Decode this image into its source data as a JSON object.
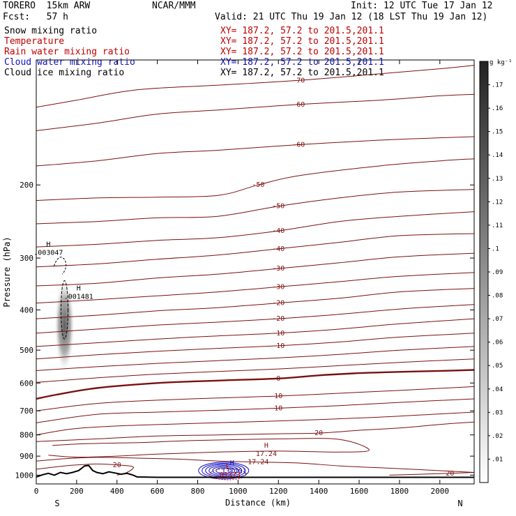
{
  "header": {
    "model": "TORERO  15km ARW",
    "center": "NCAR/MMM",
    "init": "Init: 12 UTC Tue 17 Jan 12",
    "fcst": "Fcst:   57 h",
    "valid": "Valid: 21 UTC Thu 19 Jan 12 (18 LST Thu 19 Jan 12)",
    "fields": [
      {
        "name": "Snow mixing ratio",
        "xy": "XY= 187.2, 57.2 to 201.5,201.1",
        "color": "#000000"
      },
      {
        "name": "Temperature",
        "xy": "XY= 187.2, 57.2 to 201.5,201.1",
        "color": "#c00000"
      },
      {
        "name": "Rain water mixing ratio",
        "xy": "XY= 187.2, 57.2 to 201.5,201.1",
        "color": "#c00000"
      },
      {
        "name": "Cloud water mixing ratio",
        "xy": "XY= 187.2, 57.2 to 201.5,201.1",
        "color": "#1010c0"
      },
      {
        "name": "Cloud ice mixing ratio",
        "xy": "XY= 187.2, 57.2 to 201.5,201.1",
        "color": "#000000"
      }
    ]
  },
  "chart_data": {
    "type": "contour-cross-section",
    "xlabel": "Distance (km)",
    "ylabel": "Pressure (hPa)",
    "xlim": [
      0,
      2170
    ],
    "ylim": [
      1050,
      100
    ],
    "yscale": "log",
    "x_ticks": [
      0,
      200,
      400,
      600,
      800,
      1000,
      1200,
      1400,
      1600,
      1800,
      2000
    ],
    "x_tick_labels": [
      "0",
      "200",
      "400",
      "600",
      "800",
      "1000",
      "1200",
      "1400",
      "1600",
      "1800",
      "2000"
    ],
    "y_ticks": [
      200,
      300,
      400,
      500,
      600,
      700,
      800,
      900,
      1000
    ],
    "y_tick_labels": [
      "200",
      "300",
      "400",
      "500",
      "600",
      "700",
      "800",
      "900",
      "1000"
    ],
    "x_end_labels": {
      "left": "S",
      "right": "N"
    },
    "temperature_contours": [
      {
        "label": "-70",
        "points": [
          [
            0,
            130
          ],
          [
            200,
            125
          ],
          [
            500,
            118
          ],
          [
            900,
            115
          ],
          [
            1300,
            112
          ],
          [
            1700,
            108
          ],
          [
            2000,
            105
          ],
          [
            2170,
            103
          ]
        ]
      },
      {
        "label": "-60",
        "points": [
          [
            0,
            148
          ],
          [
            300,
            142
          ],
          [
            600,
            135
          ],
          [
            900,
            132
          ],
          [
            1300,
            128
          ],
          [
            1700,
            125
          ],
          [
            2000,
            122
          ],
          [
            2170,
            121
          ]
        ]
      },
      {
        "label": "-60",
        "points": [
          [
            0,
            180
          ],
          [
            300,
            175
          ],
          [
            600,
            168
          ],
          [
            900,
            165
          ],
          [
            1300,
            160
          ],
          [
            1700,
            156
          ],
          [
            2000,
            154
          ],
          [
            2170,
            153
          ]
        ]
      },
      {
        "label": "-50",
        "points": [
          [
            0,
            218
          ],
          [
            300,
            215
          ],
          [
            600,
            214
          ],
          [
            900,
            212
          ],
          [
            1100,
            200
          ],
          [
            1300,
            190
          ],
          [
            1700,
            180
          ],
          [
            2000,
            175
          ],
          [
            2170,
            173
          ]
        ]
      },
      {
        "label": "-50",
        "points": [
          [
            0,
            248
          ],
          [
            300,
            245
          ],
          [
            600,
            240
          ],
          [
            900,
            238
          ],
          [
            1200,
            225
          ],
          [
            1500,
            215
          ],
          [
            1800,
            208
          ],
          [
            2170,
            205
          ]
        ]
      },
      {
        "label": "-40",
        "points": [
          [
            0,
            282
          ],
          [
            300,
            278
          ],
          [
            600,
            272
          ],
          [
            900,
            268
          ],
          [
            1200,
            258
          ],
          [
            1500,
            245
          ],
          [
            1800,
            238
          ],
          [
            2170,
            232
          ]
        ]
      },
      {
        "label": "-40",
        "points": [
          [
            0,
            315
          ],
          [
            300,
            310
          ],
          [
            600,
            302
          ],
          [
            900,
            295
          ],
          [
            1200,
            285
          ],
          [
            1500,
            275
          ],
          [
            1800,
            265
          ],
          [
            2170,
            262
          ]
        ]
      },
      {
        "label": "-30",
        "points": [
          [
            0,
            350
          ],
          [
            300,
            345
          ],
          [
            600,
            335
          ],
          [
            900,
            328
          ],
          [
            1200,
            318
          ],
          [
            1500,
            308
          ],
          [
            1800,
            298
          ],
          [
            2170,
            292
          ]
        ]
      },
      {
        "label": "-30",
        "points": [
          [
            0,
            385
          ],
          [
            300,
            378
          ],
          [
            600,
            370
          ],
          [
            900,
            362
          ],
          [
            1200,
            352
          ],
          [
            1500,
            342
          ],
          [
            1800,
            332
          ],
          [
            2170,
            325
          ]
        ]
      },
      {
        "label": "-20",
        "points": [
          [
            0,
            420
          ],
          [
            300,
            412
          ],
          [
            600,
            402
          ],
          [
            900,
            395
          ],
          [
            1200,
            385
          ],
          [
            1500,
            375
          ],
          [
            1800,
            362
          ],
          [
            2170,
            355
          ]
        ]
      },
      {
        "label": "-20",
        "points": [
          [
            0,
            455
          ],
          [
            300,
            445
          ],
          [
            600,
            435
          ],
          [
            900,
            428
          ],
          [
            1200,
            420
          ],
          [
            1500,
            410
          ],
          [
            1800,
            398
          ],
          [
            2170,
            388
          ]
        ]
      },
      {
        "label": "-10",
        "points": [
          [
            0,
            490
          ],
          [
            300,
            480
          ],
          [
            600,
            470
          ],
          [
            900,
            462
          ],
          [
            1200,
            455
          ],
          [
            1500,
            445
          ],
          [
            1800,
            432
          ],
          [
            2170,
            420
          ]
        ]
      },
      {
        "label": "-10",
        "points": [
          [
            0,
            525
          ],
          [
            300,
            513
          ],
          [
            600,
            503
          ],
          [
            900,
            495
          ],
          [
            1200,
            488
          ],
          [
            1500,
            478
          ],
          [
            1800,
            465
          ],
          [
            2170,
            455
          ]
        ]
      },
      {
        "label": "",
        "points": [
          [
            0,
            560
          ],
          [
            300,
            548
          ],
          [
            600,
            538
          ],
          [
            900,
            530
          ],
          [
            1200,
            522
          ],
          [
            1500,
            512
          ],
          [
            1800,
            500
          ],
          [
            2170,
            490
          ]
        ]
      },
      {
        "label": "0",
        "bold": true,
        "points": [
          [
            0,
            655
          ],
          [
            100,
            640
          ],
          [
            300,
            617
          ],
          [
            600,
            600
          ],
          [
            900,
            592
          ],
          [
            1200,
            585
          ],
          [
            1400,
            575
          ],
          [
            1600,
            568
          ],
          [
            1800,
            564
          ],
          [
            2000,
            561
          ],
          [
            2170,
            558
          ]
        ]
      },
      {
        "label": "",
        "points": [
          [
            0,
            598
          ],
          [
            300,
            583
          ],
          [
            600,
            571
          ],
          [
            900,
            563
          ],
          [
            1200,
            555
          ],
          [
            1500,
            545
          ],
          [
            1800,
            535
          ],
          [
            2170,
            525
          ]
        ]
      },
      {
        "label": "10",
        "points": [
          [
            0,
            700
          ],
          [
            300,
            672
          ],
          [
            600,
            660
          ],
          [
            900,
            652
          ],
          [
            1200,
            645
          ],
          [
            1500,
            635
          ],
          [
            1800,
            625
          ],
          [
            2170,
            612
          ]
        ]
      },
      {
        "label": "10",
        "points": [
          [
            0,
            748
          ],
          [
            300,
            714
          ],
          [
            600,
            705
          ],
          [
            900,
            698
          ],
          [
            1200,
            690
          ],
          [
            1500,
            680
          ],
          [
            1800,
            668
          ],
          [
            2170,
            655
          ]
        ]
      },
      {
        "label": "",
        "points": [
          [
            0,
            800
          ],
          [
            200,
            772
          ],
          [
            500,
            758
          ],
          [
            900,
            748
          ],
          [
            1300,
            738
          ],
          [
            1700,
            725
          ],
          [
            2000,
            712
          ],
          [
            2170,
            705
          ]
        ]
      },
      {
        "label": "20",
        "points": [
          [
            0,
            830
          ],
          [
            300,
            818
          ],
          [
            600,
            805
          ],
          [
            900,
            800
          ],
          [
            1200,
            795
          ],
          [
            1400,
            792
          ],
          [
            1600,
            780
          ],
          [
            1800,
            770
          ],
          [
            2000,
            755
          ],
          [
            2170,
            745
          ]
        ]
      },
      {
        "label": "",
        "points": [
          [
            80,
            848
          ],
          [
            250,
            840
          ],
          [
            500,
            835
          ],
          [
            800,
            825
          ],
          [
            1200,
            818
          ],
          [
            1500,
            820
          ],
          [
            1650,
            870
          ],
          [
            1500,
            880
          ],
          [
            1200,
            875
          ],
          [
            900,
            880
          ],
          [
            600,
            890
          ],
          [
            400,
            900
          ],
          [
            200,
            905
          ],
          [
            60,
            895
          ]
        ]
      },
      {
        "label": "17.24",
        "points": [
          [
            0,
            925
          ],
          [
            150,
            912
          ],
          [
            300,
            906
          ],
          [
            500,
            910
          ],
          [
            700,
            915
          ],
          [
            900,
            925
          ],
          [
            1100,
            930
          ],
          [
            1300,
            935
          ],
          [
            1500,
            950
          ],
          [
            1700,
            960
          ],
          [
            1900,
            970
          ],
          [
            2170,
            985
          ]
        ]
      },
      {
        "label": "20",
        "points": [
          [
            0,
            968
          ],
          [
            100,
            955
          ],
          [
            200,
            945
          ],
          [
            300,
            940
          ],
          [
            400,
            945
          ],
          [
            480,
            955
          ],
          [
            450,
            985
          ],
          [
            400,
            1000
          ]
        ]
      },
      {
        "label": "20",
        "points": [
          [
            1750,
            1000
          ],
          [
            1900,
            995
          ],
          [
            2050,
            990
          ],
          [
            2170,
            985
          ]
        ]
      }
    ],
    "snow_max": {
      "label": "H",
      "value": ".003047",
      "x": 60,
      "p": 290
    },
    "ice_max": {
      "label": "H",
      "value": ".001481",
      "x": 210,
      "p": 370
    },
    "temp_max": {
      "label": "H",
      "value": "17.24",
      "x": 1140,
      "p": 885
    },
    "cloud_water_max": {
      "label": "H",
      "value": ".137701",
      "x": 970,
      "p": 975
    },
    "rain_max": {
      "label": "L",
      "value": ".01373",
      "x": 950,
      "p": 995
    },
    "terrain": [
      [
        0,
        1010
      ],
      [
        30,
        998
      ],
      [
        60,
        990
      ],
      [
        90,
        1000
      ],
      [
        120,
        985
      ],
      [
        150,
        992
      ],
      [
        180,
        985
      ],
      [
        210,
        975
      ],
      [
        240,
        950
      ],
      [
        260,
        948
      ],
      [
        280,
        975
      ],
      [
        300,
        985
      ],
      [
        330,
        992
      ],
      [
        360,
        982
      ],
      [
        390,
        988
      ],
      [
        420,
        995
      ],
      [
        450,
        990
      ],
      [
        480,
        1000
      ],
      [
        500,
        1010
      ],
      [
        600,
        1012
      ],
      [
        800,
        1012
      ],
      [
        1000,
        1012
      ],
      [
        1200,
        1012
      ],
      [
        1400,
        1012
      ],
      [
        1600,
        1012
      ],
      [
        1800,
        1012
      ],
      [
        2000,
        1012
      ],
      [
        2170,
        1012
      ]
    ],
    "shading": [
      {
        "x": 140,
        "p_top": 340,
        "p_bot": 560,
        "max": 0.12
      }
    ],
    "colorbar": {
      "unit": "g kg⁻¹",
      "levels": [
        ".01",
        ".02",
        ".03",
        ".04",
        ".05",
        ".06",
        ".07",
        ".08",
        ".09",
        ".1",
        ".11",
        ".12",
        ".13",
        ".14",
        ".15",
        ".16",
        ".17"
      ],
      "vmin": 0.0,
      "vmax": 0.18
    }
  }
}
